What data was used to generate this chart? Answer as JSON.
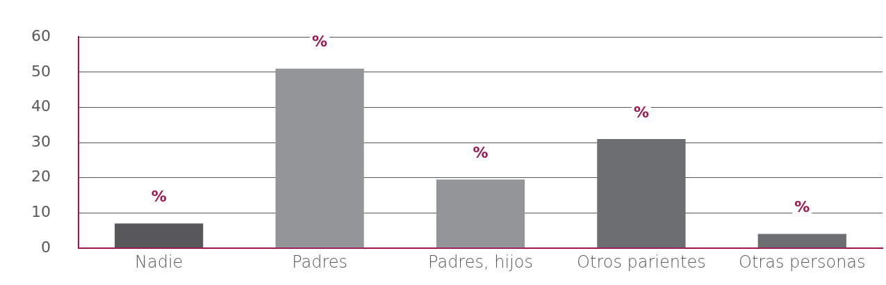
{
  "chart_data": {
    "type": "bar",
    "categories": [
      "Nadie",
      "Padres",
      "Padres, hijos",
      "Otros parientes",
      "Otras personas"
    ],
    "values": [
      7,
      51,
      19.5,
      31,
      4
    ],
    "colors": [
      "#58585a",
      "#939598",
      "#939598",
      "#6d6e71",
      "#6d6e71"
    ],
    "value_labels": [
      "%",
      "%",
      "%",
      "%",
      "%"
    ],
    "ylim": [
      0,
      60
    ],
    "yticks": [
      0,
      10,
      20,
      30,
      40,
      50,
      60
    ],
    "grid": "y",
    "legend": false
  }
}
